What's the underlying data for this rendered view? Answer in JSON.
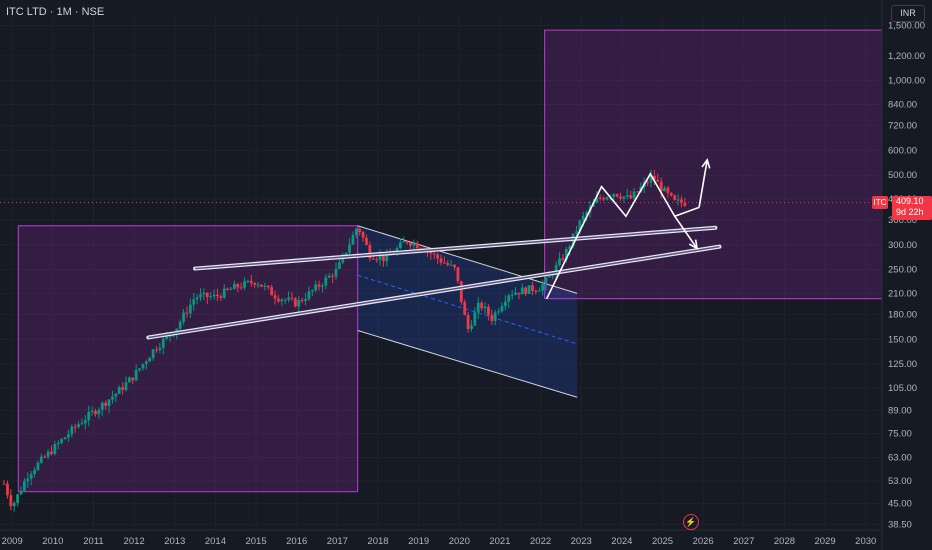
{
  "header": {
    "title": "ITC LTD · 1M · NSE",
    "currency": "INR"
  },
  "price_tag": {
    "symbol": "ITC",
    "price": "409.10",
    "countdown": "9d 22h"
  },
  "chart_data": {
    "type": "candlestick",
    "title": "ITC LTD · 1M · NSE",
    "y_scale": "log",
    "ylim": [
      37,
      1620
    ],
    "xlim": [
      2008.7,
      2030.4
    ],
    "y_ticks": [
      "1,500.00",
      "1,200.00",
      "1,000.00",
      "840.00",
      "720.00",
      "600.00",
      "500.00",
      "420.00",
      "360.00",
      "300.00",
      "250.00",
      "210.00",
      "180.00",
      "150.00",
      "125.00",
      "105.00",
      "89.00",
      "75.00",
      "63.00",
      "53.00",
      "45.00",
      "38.50"
    ],
    "x_ticks": [
      "2009",
      "2010",
      "2011",
      "2012",
      "2013",
      "2014",
      "2015",
      "2016",
      "2017",
      "2018",
      "2019",
      "2020",
      "2021",
      "2022",
      "2023",
      "2024",
      "2025",
      "2026",
      "2027",
      "2028",
      "2029",
      "2030"
    ],
    "last_price": 409.1,
    "price_path": [
      [
        2008.8,
        52
      ],
      [
        2009.0,
        44
      ],
      [
        2009.4,
        56
      ],
      [
        2010.0,
        67
      ],
      [
        2010.6,
        80
      ],
      [
        2011.0,
        88
      ],
      [
        2011.6,
        102
      ],
      [
        2012.0,
        115
      ],
      [
        2012.5,
        140
      ],
      [
        2013.0,
        160
      ],
      [
        2013.5,
        205
      ],
      [
        2014.0,
        205
      ],
      [
        2014.5,
        220
      ],
      [
        2015.0,
        230
      ],
      [
        2015.5,
        205
      ],
      [
        2016.0,
        195
      ],
      [
        2016.5,
        220
      ],
      [
        2017.0,
        250
      ],
      [
        2017.5,
        345
      ],
      [
        2017.8,
        280
      ],
      [
        2018.2,
        270
      ],
      [
        2018.7,
        310
      ],
      [
        2019.1,
        295
      ],
      [
        2019.5,
        270
      ],
      [
        2019.9,
        250
      ],
      [
        2020.2,
        160
      ],
      [
        2020.5,
        195
      ],
      [
        2020.8,
        175
      ],
      [
        2021.2,
        210
      ],
      [
        2021.6,
        215
      ],
      [
        2022.0,
        220
      ],
      [
        2022.2,
        235
      ],
      [
        2022.6,
        280
      ],
      [
        2023.0,
        360
      ],
      [
        2023.4,
        420
      ],
      [
        2023.8,
        440
      ],
      [
        2024.2,
        420
      ],
      [
        2024.5,
        460
      ],
      [
        2024.75,
        495
      ],
      [
        2025.0,
        450
      ],
      [
        2025.3,
        410
      ],
      [
        2025.6,
        409.1
      ]
    ],
    "annotations": {
      "boxes": [
        {
          "x": [
            2009.15,
            2017.5
          ],
          "y": [
            49,
            345
          ]
        },
        {
          "x": [
            2022.1,
            2030.4
          ],
          "y": [
            202,
            1450
          ]
        }
      ],
      "channel": {
        "x": [
          2017.5,
          2022.9
        ],
        "upper": [
          345,
          210
        ],
        "lower": [
          160,
          98
        ],
        "mid": [
          240,
          145
        ]
      },
      "rising_lines": [
        {
          "x": [
            2013.5,
            2026.3
          ],
          "y": [
            252,
            340
          ]
        },
        {
          "x": [
            2012.35,
            2026.4
          ],
          "y": [
            152,
            296
          ]
        }
      ],
      "zigzag": {
        "x": [
          2022.15,
          2023.5,
          2024.1,
          2024.7,
          2025.3,
          2025.9
        ],
        "y": [
          202,
          460,
          370,
          505,
          370,
          395
        ]
      },
      "arrows": [
        {
          "from": [
            2025.9,
            395
          ],
          "to": [
            2026.1,
            560
          ]
        },
        {
          "from": [
            2025.3,
            370
          ],
          "to": [
            2025.85,
            292
          ]
        }
      ]
    }
  }
}
